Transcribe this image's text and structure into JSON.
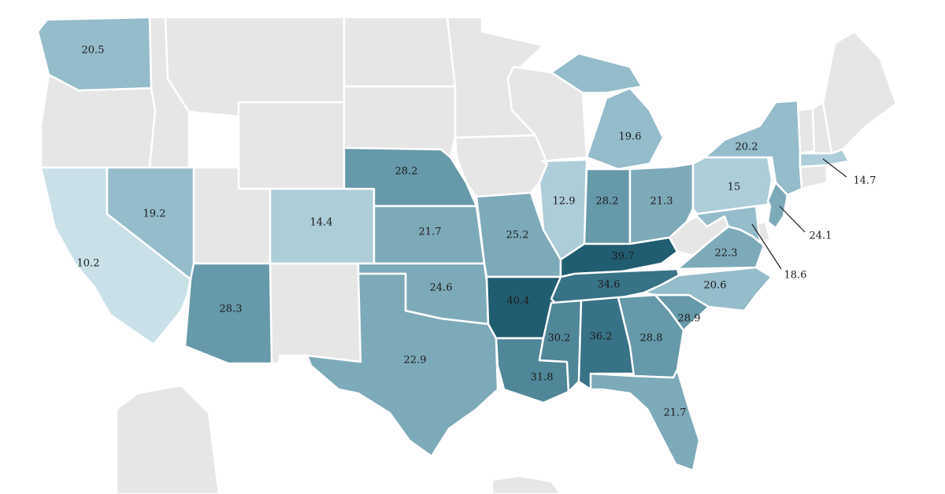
{
  "colors": {
    "no_data": "#e6e6e6",
    "scale": [
      "#c9e0e8",
      "#adcdd9",
      "#94bcca",
      "#7daab9",
      "#6699a9",
      "#4f8798",
      "#387286",
      "#215d70"
    ]
  },
  "states": [
    {
      "id": "WA",
      "value": "20.5"
    },
    {
      "id": "CA",
      "value": "10.2"
    },
    {
      "id": "NV",
      "value": "19.2"
    },
    {
      "id": "AZ",
      "value": "28.3"
    },
    {
      "id": "CO",
      "value": "14.4"
    },
    {
      "id": "NE",
      "value": "28.2"
    },
    {
      "id": "KS",
      "value": "21.7"
    },
    {
      "id": "OK",
      "value": "24.6"
    },
    {
      "id": "TX",
      "value": "22.9"
    },
    {
      "id": "MO",
      "value": "25.2"
    },
    {
      "id": "AR",
      "value": "40.4"
    },
    {
      "id": "LA",
      "value": "31.8"
    },
    {
      "id": "IL",
      "value": "12.9"
    },
    {
      "id": "IN",
      "value": "28.2"
    },
    {
      "id": "MI",
      "value": "19.6"
    },
    {
      "id": "OH",
      "value": "21.3"
    },
    {
      "id": "KY",
      "value": "39.7"
    },
    {
      "id": "TN",
      "value": "34.6"
    },
    {
      "id": "MS",
      "value": "30.2"
    },
    {
      "id": "AL",
      "value": "36.2"
    },
    {
      "id": "GA",
      "value": "28.8"
    },
    {
      "id": "FL",
      "value": "21.7"
    },
    {
      "id": "SC",
      "value": "28.9"
    },
    {
      "id": "NC",
      "value": "20.6"
    },
    {
      "id": "VA",
      "value": "22.3"
    },
    {
      "id": "PA",
      "value": "15"
    },
    {
      "id": "NY",
      "value": "20.2"
    },
    {
      "id": "NJ",
      "value": "24.1"
    },
    {
      "id": "MD",
      "value": "18.6"
    },
    {
      "id": "MA",
      "value": "14.7"
    }
  ]
}
